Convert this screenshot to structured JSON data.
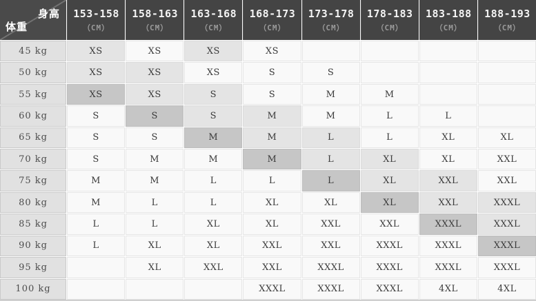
{
  "colors": {
    "header_bg": "#444444",
    "corner_bg": "#4a4a4a",
    "diagonal_line": "#717171",
    "header_text": "#f4f4f4",
    "header_unit_text": "#9a9a9a",
    "weight_col_bg": "#e1e1e1",
    "weight_text": "#4c4c4c",
    "cell_white": "#f9f9f9",
    "cell_light": "#e4e4e4",
    "cell_dark": "#c6c6c6",
    "cell_text": "#3a3a3a"
  },
  "chart_data": {
    "type": "table",
    "title": "Height / weight clothing size chart",
    "corner": {
      "top_right": "身高",
      "bottom_left": "体重"
    },
    "column_unit": "（CM）",
    "columns": [
      "153-158",
      "158-163",
      "163-168",
      "168-173",
      "173-178",
      "178-183",
      "183-188",
      "188-193"
    ],
    "row_labels": [
      "45 kg",
      "50 kg",
      "55 kg",
      "60 kg",
      "65 kg",
      "70 kg",
      "75 kg",
      "80 kg",
      "85 kg",
      "90 kg",
      "95 kg",
      "100 kg"
    ],
    "matrix": [
      [
        "XS",
        "XS",
        "XS",
        "XS",
        "",
        "",
        "",
        ""
      ],
      [
        "XS",
        "XS",
        "XS",
        "S",
        "S",
        "",
        "",
        ""
      ],
      [
        "XS",
        "XS",
        "S",
        "S",
        "M",
        "M",
        "",
        ""
      ],
      [
        "S",
        "S",
        "S",
        "M",
        "M",
        "L",
        "L",
        ""
      ],
      [
        "S",
        "S",
        "M",
        "M",
        "L",
        "L",
        "XL",
        "XL"
      ],
      [
        "S",
        "M",
        "M",
        "M",
        "L",
        "XL",
        "XL",
        "XXL"
      ],
      [
        "M",
        "M",
        "L",
        "L",
        "L",
        "XL",
        "XXL",
        "XXL"
      ],
      [
        "M",
        "L",
        "L",
        "XL",
        "XL",
        "XL",
        "XXL",
        "XXXL"
      ],
      [
        "L",
        "L",
        "XL",
        "XL",
        "XXL",
        "XXL",
        "XXXL",
        "XXXL"
      ],
      [
        "L",
        "XL",
        "XL",
        "XXL",
        "XXL",
        "XXXL",
        "XXXL",
        "XXXL"
      ],
      [
        "",
        "XL",
        "XXL",
        "XXL",
        "XXXL",
        "XXXL",
        "XXXL",
        "XXXL"
      ],
      [
        "",
        "",
        "",
        "XXXL",
        "XXXL",
        "XXXL",
        "4XL",
        "4XL"
      ]
    ],
    "shade_matrix": [
      [
        "light",
        "white",
        "light",
        "white",
        "white",
        "white",
        "white",
        "white"
      ],
      [
        "light",
        "light",
        "white",
        "white",
        "white",
        "white",
        "white",
        "white"
      ],
      [
        "dark",
        "light",
        "light",
        "white",
        "white",
        "white",
        "white",
        "white"
      ],
      [
        "white",
        "dark",
        "light",
        "light",
        "white",
        "white",
        "white",
        "white"
      ],
      [
        "white",
        "white",
        "dark",
        "light",
        "light",
        "white",
        "white",
        "white"
      ],
      [
        "white",
        "white",
        "white",
        "dark",
        "light",
        "light",
        "white",
        "white"
      ],
      [
        "white",
        "white",
        "white",
        "white",
        "dark",
        "light",
        "light",
        "white"
      ],
      [
        "white",
        "white",
        "white",
        "white",
        "white",
        "dark",
        "light",
        "light"
      ],
      [
        "white",
        "white",
        "white",
        "white",
        "white",
        "white",
        "dark",
        "light"
      ],
      [
        "white",
        "white",
        "white",
        "white",
        "white",
        "white",
        "white",
        "dark"
      ],
      [
        "white",
        "white",
        "white",
        "white",
        "white",
        "white",
        "white",
        "white"
      ],
      [
        "white",
        "white",
        "white",
        "white",
        "white",
        "white",
        "white",
        "white"
      ]
    ]
  }
}
